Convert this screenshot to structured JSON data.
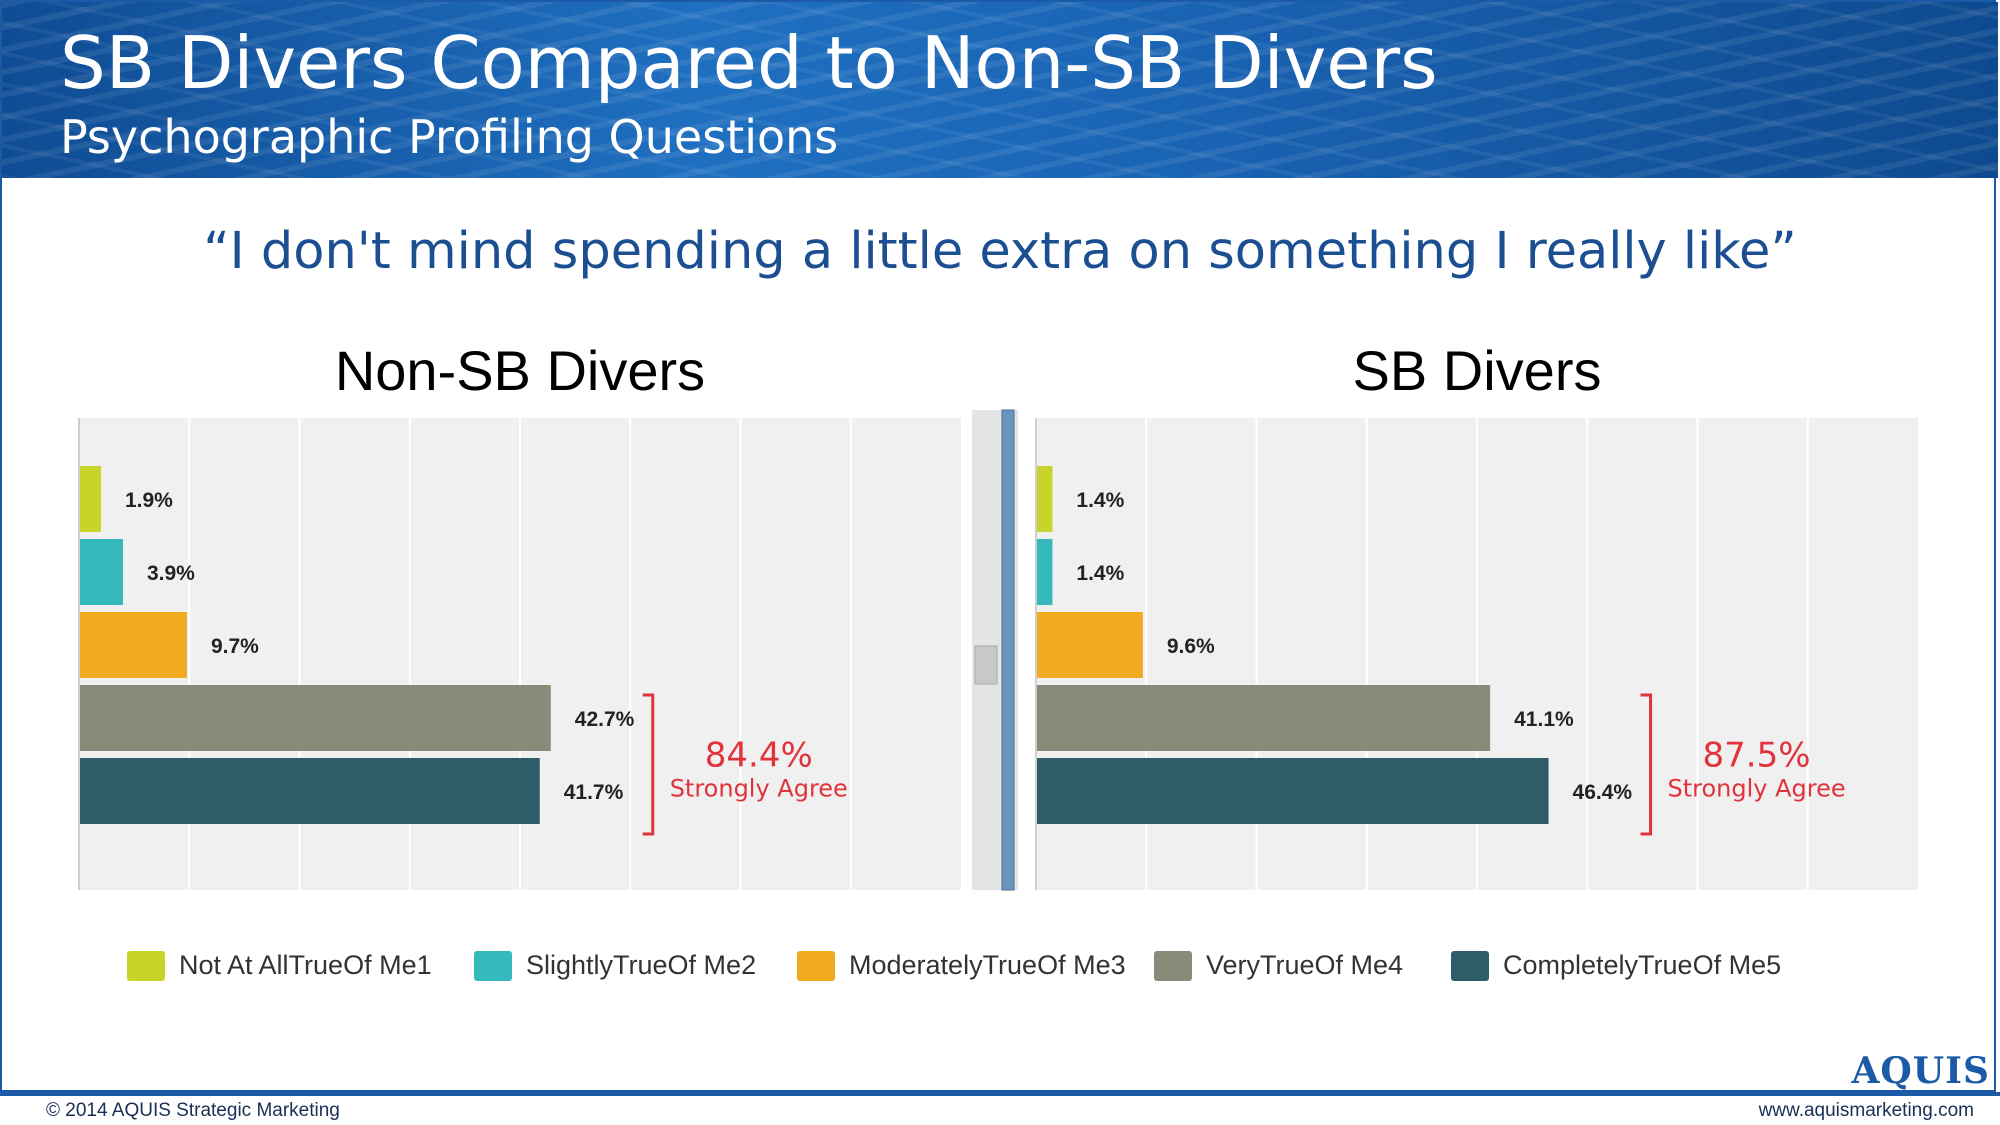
{
  "header": {
    "title": "SB Divers Compared to Non-SB Divers",
    "subtitle": "Psychographic Profiling Questions"
  },
  "question": "“I don't mind spending a little extra on something I really like”",
  "colors": {
    "Not At AllTrueOf Me1": "#c9d42a",
    "SlightlyTrueOf Me2": "#35b9bd",
    "ModeratelyTrueOf Me3": "#f2ab1f",
    "VeryTrueOf Me4": "#898a77",
    "CompletelyTrueOf Me5": "#2e5c69",
    "annotation": "#e0333c"
  },
  "chart_data": [
    {
      "type": "bar",
      "orientation": "horizontal",
      "title": "Non-SB Divers",
      "categories": [
        "Not At AllTrueOf Me1",
        "SlightlyTrueOf Me2",
        "ModeratelyTrueOf Me3",
        "VeryTrueOf Me4",
        "CompletelyTrueOf Me5"
      ],
      "values": [
        1.9,
        3.9,
        9.7,
        42.7,
        41.7
      ],
      "value_labels": [
        "1.9%",
        "3.9%",
        "9.7%",
        "42.7%",
        "41.7%"
      ],
      "xlim": [
        0,
        80
      ],
      "grid": true,
      "annotation": {
        "value": "84.4%",
        "text": "Strongly Agree",
        "spans": [
          "VeryTrueOf Me4",
          "CompletelyTrueOf Me5"
        ]
      }
    },
    {
      "type": "bar",
      "orientation": "horizontal",
      "title": "SB Divers",
      "categories": [
        "Not At AllTrueOf Me1",
        "SlightlyTrueOf Me2",
        "ModeratelyTrueOf Me3",
        "VeryTrueOf Me4",
        "CompletelyTrueOf Me5"
      ],
      "values": [
        1.4,
        1.4,
        9.6,
        41.1,
        46.4
      ],
      "value_labels": [
        "1.4%",
        "1.4%",
        "9.6%",
        "41.1%",
        "46.4%"
      ],
      "xlim": [
        0,
        80
      ],
      "grid": true,
      "annotation": {
        "value": "87.5%",
        "text": "Strongly Agree",
        "spans": [
          "VeryTrueOf Me4",
          "CompletelyTrueOf Me5"
        ]
      }
    }
  ],
  "legend": [
    "Not At AllTrueOf Me1",
    "SlightlyTrueOf Me2",
    "ModeratelyTrueOf Me3",
    "VeryTrueOf Me4",
    "CompletelyTrueOf Me5"
  ],
  "brand": {
    "logo": "AQUIS"
  },
  "footer": {
    "copyright": "© 2014 AQUIS Strategic Marketing",
    "website": "www.aquismarketing.com"
  }
}
